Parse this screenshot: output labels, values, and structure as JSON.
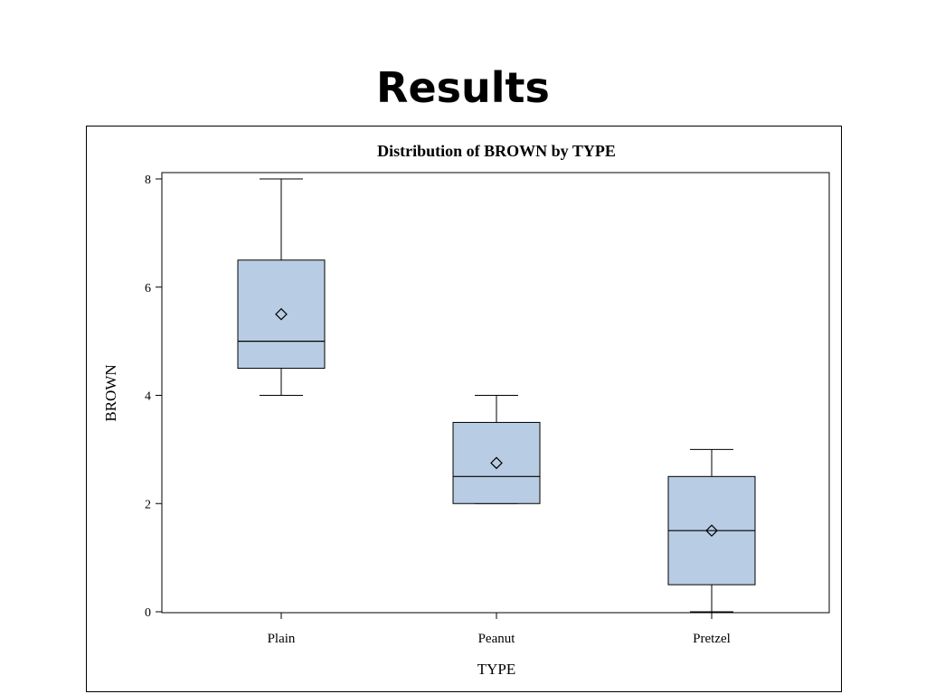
{
  "slide": {
    "title": "Results"
  },
  "chart_data": {
    "type": "box",
    "title": "Distribution of BROWN by TYPE",
    "xlabel": "TYPE",
    "ylabel": "BROWN",
    "ylim": [
      0,
      8.1
    ],
    "yticks": [
      0,
      2,
      4,
      6,
      8
    ],
    "grid": false,
    "categories": [
      "Plain",
      "Peanut",
      "Pretzel"
    ],
    "boxes": [
      {
        "category": "Plain",
        "min": 4,
        "q1": 4.5,
        "median": 5,
        "q3": 6.5,
        "max": 8,
        "mean": 5.5
      },
      {
        "category": "Peanut",
        "min": 2,
        "q1": 2,
        "median": 2.5,
        "q3": 3.5,
        "max": 4,
        "mean": 2.75
      },
      {
        "category": "Pretzel",
        "min": 0,
        "q1": 0.5,
        "median": 1.5,
        "q3": 2.5,
        "max": 3,
        "mean": 1.5
      }
    ],
    "colors": {
      "box_fill": "#b8cce4",
      "line": "#000000"
    }
  }
}
